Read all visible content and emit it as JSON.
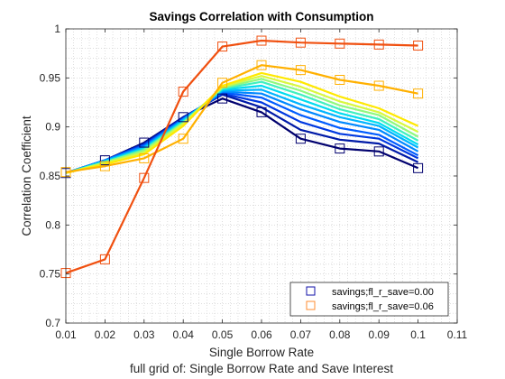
{
  "chart_data": {
    "type": "line",
    "title": "Savings Correlation with Consumption",
    "xlabel": "Single Borrow Rate",
    "subtitle_below": "full grid of: Single Borrow Rate and Save Interest",
    "ylabel": "Correlation Coefficient",
    "xlim": [
      0.01,
      0.11
    ],
    "ylim": [
      0.7,
      1.0
    ],
    "x_ticks": [
      "0.01",
      "0.02",
      "0.03",
      "0.04",
      "0.05",
      "0.06",
      "0.07",
      "0.08",
      "0.09",
      "0.1",
      "0.11"
    ],
    "y_ticks": [
      "0.7",
      "0.75",
      "0.8",
      "0.85",
      "0.9",
      "0.95",
      "1"
    ],
    "grid": "dotted minor",
    "legend_position": "bottom-right",
    "legend": [
      {
        "label": "savings;fl_r_save=0.00",
        "color": "#1010a8"
      },
      {
        "label": "savings;fl_r_save=0.06",
        "color": "#ff8c30"
      }
    ],
    "x": [
      0.01,
      0.02,
      0.03,
      0.04,
      0.05,
      0.06,
      0.07,
      0.08,
      0.09,
      0.1
    ],
    "series": [
      {
        "color": "#00006e",
        "marker": true,
        "values": [
          0.853,
          0.866,
          0.884,
          0.91,
          0.929,
          0.915,
          0.888,
          0.878,
          0.875,
          0.858
        ]
      },
      {
        "color": "#001aa8",
        "marker": false,
        "values": [
          0.853,
          0.866,
          0.883,
          0.91,
          0.933,
          0.92,
          0.897,
          0.887,
          0.883,
          0.864
        ]
      },
      {
        "color": "#0038e0",
        "marker": false,
        "values": [
          0.853,
          0.866,
          0.882,
          0.909,
          0.934,
          0.925,
          0.905,
          0.893,
          0.888,
          0.868
        ]
      },
      {
        "color": "#005cff",
        "marker": false,
        "values": [
          0.853,
          0.866,
          0.881,
          0.908,
          0.935,
          0.93,
          0.912,
          0.899,
          0.892,
          0.871
        ]
      },
      {
        "color": "#0088ff",
        "marker": false,
        "values": [
          0.853,
          0.866,
          0.88,
          0.908,
          0.936,
          0.934,
          0.918,
          0.905,
          0.897,
          0.875
        ]
      },
      {
        "color": "#00b4ff",
        "marker": false,
        "values": [
          0.853,
          0.865,
          0.879,
          0.907,
          0.937,
          0.938,
          0.923,
          0.91,
          0.901,
          0.879
        ]
      },
      {
        "color": "#00dcf0",
        "marker": false,
        "values": [
          0.853,
          0.865,
          0.878,
          0.906,
          0.938,
          0.942,
          0.928,
          0.914,
          0.904,
          0.882
        ]
      },
      {
        "color": "#40f0c0",
        "marker": false,
        "values": [
          0.853,
          0.864,
          0.877,
          0.905,
          0.939,
          0.946,
          0.933,
          0.918,
          0.908,
          0.886
        ]
      },
      {
        "color": "#90f880",
        "marker": false,
        "values": [
          0.853,
          0.864,
          0.876,
          0.904,
          0.94,
          0.949,
          0.937,
          0.922,
          0.912,
          0.89
        ]
      },
      {
        "color": "#d8f840",
        "marker": false,
        "values": [
          0.853,
          0.863,
          0.874,
          0.903,
          0.941,
          0.952,
          0.941,
          0.926,
          0.915,
          0.895
        ]
      },
      {
        "color": "#ffe800",
        "marker": false,
        "values": [
          0.853,
          0.862,
          0.872,
          0.901,
          0.942,
          0.955,
          0.946,
          0.931,
          0.919,
          0.901
        ]
      },
      {
        "color": "#ffb000",
        "marker": true,
        "values": [
          0.854,
          0.86,
          0.868,
          0.888,
          0.945,
          0.963,
          0.958,
          0.948,
          0.942,
          0.934
        ]
      },
      {
        "color": "#f05010",
        "marker": true,
        "values": [
          0.751,
          0.765,
          0.848,
          0.936,
          0.982,
          0.988,
          0.986,
          0.985,
          0.984,
          0.983
        ]
      }
    ]
  }
}
